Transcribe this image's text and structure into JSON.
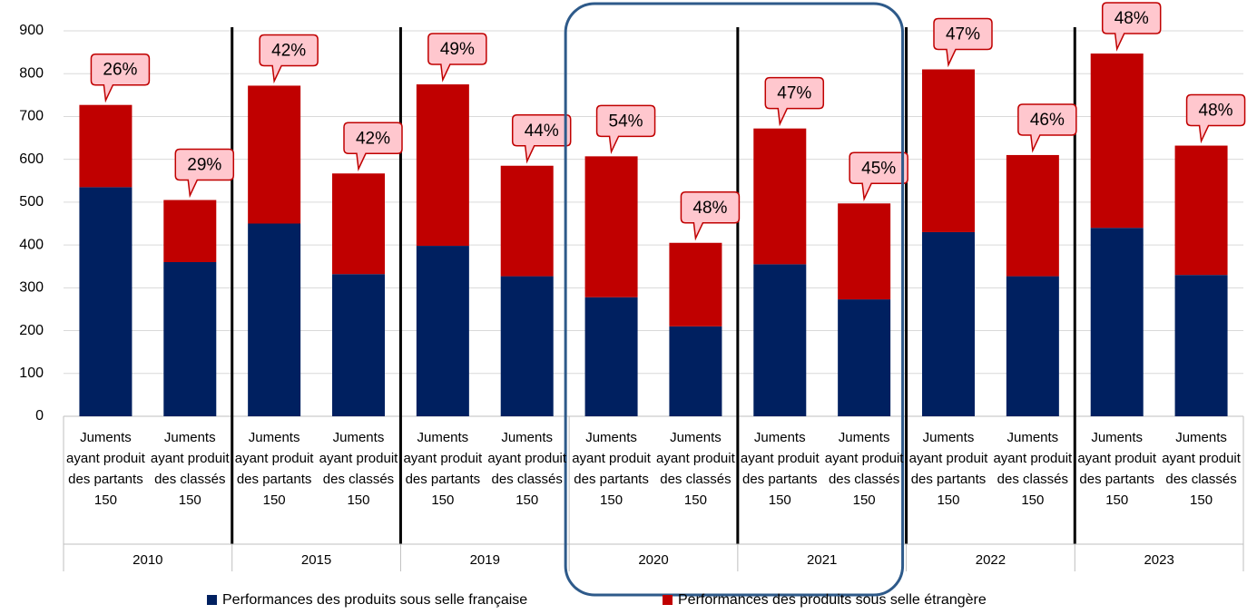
{
  "chart_data": {
    "type": "stacked_bar",
    "categories": [
      "Juments ayant produit des partants 150",
      "Juments ayant produit des classés 150",
      "Juments ayant produit des partants 150",
      "Juments ayant produit des classés 150",
      "Juments ayant produit des partants 150",
      "Juments ayant produit des classés 150",
      "Juments ayant produit des partants 150",
      "Juments ayant produit des classés 150",
      "Juments ayant produit des partants 150",
      "Juments ayant produit des classés 150",
      "Juments ayant produit des partants 150",
      "Juments ayant produit des classés 150",
      "Juments ayant produit des partants 150",
      "Juments ayant produit des classés 150"
    ],
    "groups": [
      "2010",
      "2015",
      "2019",
      "2020",
      "2021",
      "2022",
      "2023"
    ],
    "series": [
      {
        "name": "Performances des produits sous selle française",
        "color": "#002060",
        "values": [
          535,
          360,
          450,
          332,
          398,
          327,
          278,
          210,
          355,
          273,
          430,
          327,
          440,
          330
        ]
      },
      {
        "name": "Performances des produits sous selle étrangère",
        "color": "#c00000",
        "values": [
          192,
          145,
          322,
          235,
          377,
          258,
          329,
          195,
          317,
          224,
          380,
          283,
          407,
          302
        ]
      }
    ],
    "callouts": [
      {
        "value": 26,
        "label": "26%"
      },
      {
        "value": 29,
        "label": "29%"
      },
      {
        "value": 42,
        "label": "42%"
      },
      {
        "value": 42,
        "label": "42%"
      },
      {
        "value": 49,
        "label": "49%"
      },
      {
        "value": 44,
        "label": "44%"
      },
      {
        "value": 54,
        "label": "54%"
      },
      {
        "value": 48,
        "label": "48%"
      },
      {
        "value": 47,
        "label": "47%"
      },
      {
        "value": 45,
        "label": "45%"
      },
      {
        "value": 47,
        "label": "47%"
      },
      {
        "value": 46,
        "label": "46%"
      },
      {
        "value": 48,
        "label": "48%"
      },
      {
        "value": 48,
        "label": "48%"
      }
    ],
    "ylim": [
      0,
      900
    ],
    "yticks": [
      0,
      100,
      200,
      300,
      400,
      500,
      600,
      700,
      800,
      900
    ],
    "grid": true,
    "legend": "bottom"
  }
}
